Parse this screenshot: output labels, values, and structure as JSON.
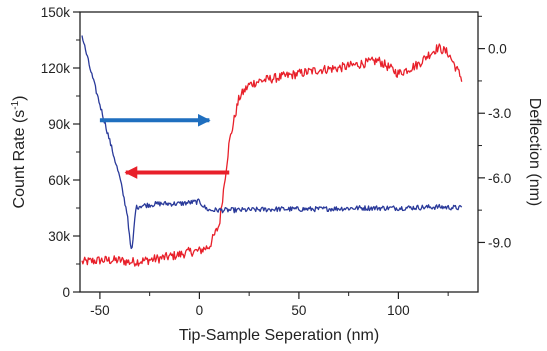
{
  "chart_data": {
    "type": "line",
    "title": "",
    "xlabel": "Tip-Sample Seperation (nm)",
    "ylabel_left_prefix": "Count Rate (s",
    "ylabel_left_sup": "-1",
    "ylabel_left_suffix": ")",
    "ylabel_right": "Deflection (nm)",
    "xlim": [
      -60,
      140
    ],
    "ylim_left": [
      0,
      150000
    ],
    "ylim_right": [
      -11.3,
      1.7
    ],
    "x_ticks": [
      -50,
      0,
      50,
      100
    ],
    "x_tick_labels": [
      "-50",
      "0",
      "50",
      "100"
    ],
    "y_left_ticks": [
      0,
      30000,
      60000,
      90000,
      120000,
      150000
    ],
    "y_left_tick_labels": [
      "0",
      "30k",
      "60k",
      "90k",
      "120k",
      "150k"
    ],
    "y_right_ticks": [
      0,
      -3,
      -6,
      -9
    ],
    "y_right_tick_labels": [
      "0.0",
      "-3.0",
      "-6.0",
      "-9.0"
    ],
    "grid": false,
    "legend": "none",
    "series": [
      {
        "axis": "left",
        "color": "#e8202a",
        "x": [
          -59,
          -50,
          -40,
          -35,
          -30,
          -20,
          -10,
          -5,
          0,
          5,
          10,
          15,
          18,
          20,
          22,
          25,
          30,
          40,
          50,
          60,
          70,
          80,
          90,
          100,
          110,
          115,
          120,
          125,
          130,
          132
        ],
        "y": [
          16000,
          17000,
          17000,
          16000,
          16500,
          18000,
          20000,
          21500,
          22000,
          24500,
          36000,
          80000,
          95000,
          104000,
          107000,
          111000,
          113000,
          115000,
          117000,
          119000,
          120000,
          122000,
          124000,
          117000,
          122000,
          127000,
          131000,
          128000,
          118000,
          114000
        ],
        "noise_amplitude": 2500
      },
      {
        "axis": "right",
        "color": "#2a3a9a",
        "x": [
          -59,
          -55,
          -50,
          -45,
          -40,
          -36,
          -35,
          -34,
          -33,
          -32,
          -30,
          -20,
          -10,
          0,
          3,
          5,
          10,
          20,
          40,
          60,
          80,
          100,
          120,
          132
        ],
        "y": [
          0.6,
          -0.9,
          -2.6,
          -4.3,
          -6.0,
          -7.8,
          -8.9,
          -9.5,
          -8.5,
          -7.4,
          -7.3,
          -7.2,
          -7.2,
          -7.1,
          -7.4,
          -7.5,
          -7.5,
          -7.5,
          -7.45,
          -7.45,
          -7.4,
          -7.4,
          -7.35,
          -7.4
        ],
        "noise_amplitude": 0.12
      }
    ],
    "annotations": [
      {
        "type": "arrow",
        "direction": "right",
        "color": "#1f6fbf",
        "x_from": -50,
        "x_to": 5,
        "y_left": 92000
      },
      {
        "type": "arrow",
        "direction": "left",
        "color": "#e8202a",
        "x_from": 15,
        "x_to": -37,
        "y_left": 64000
      }
    ]
  }
}
